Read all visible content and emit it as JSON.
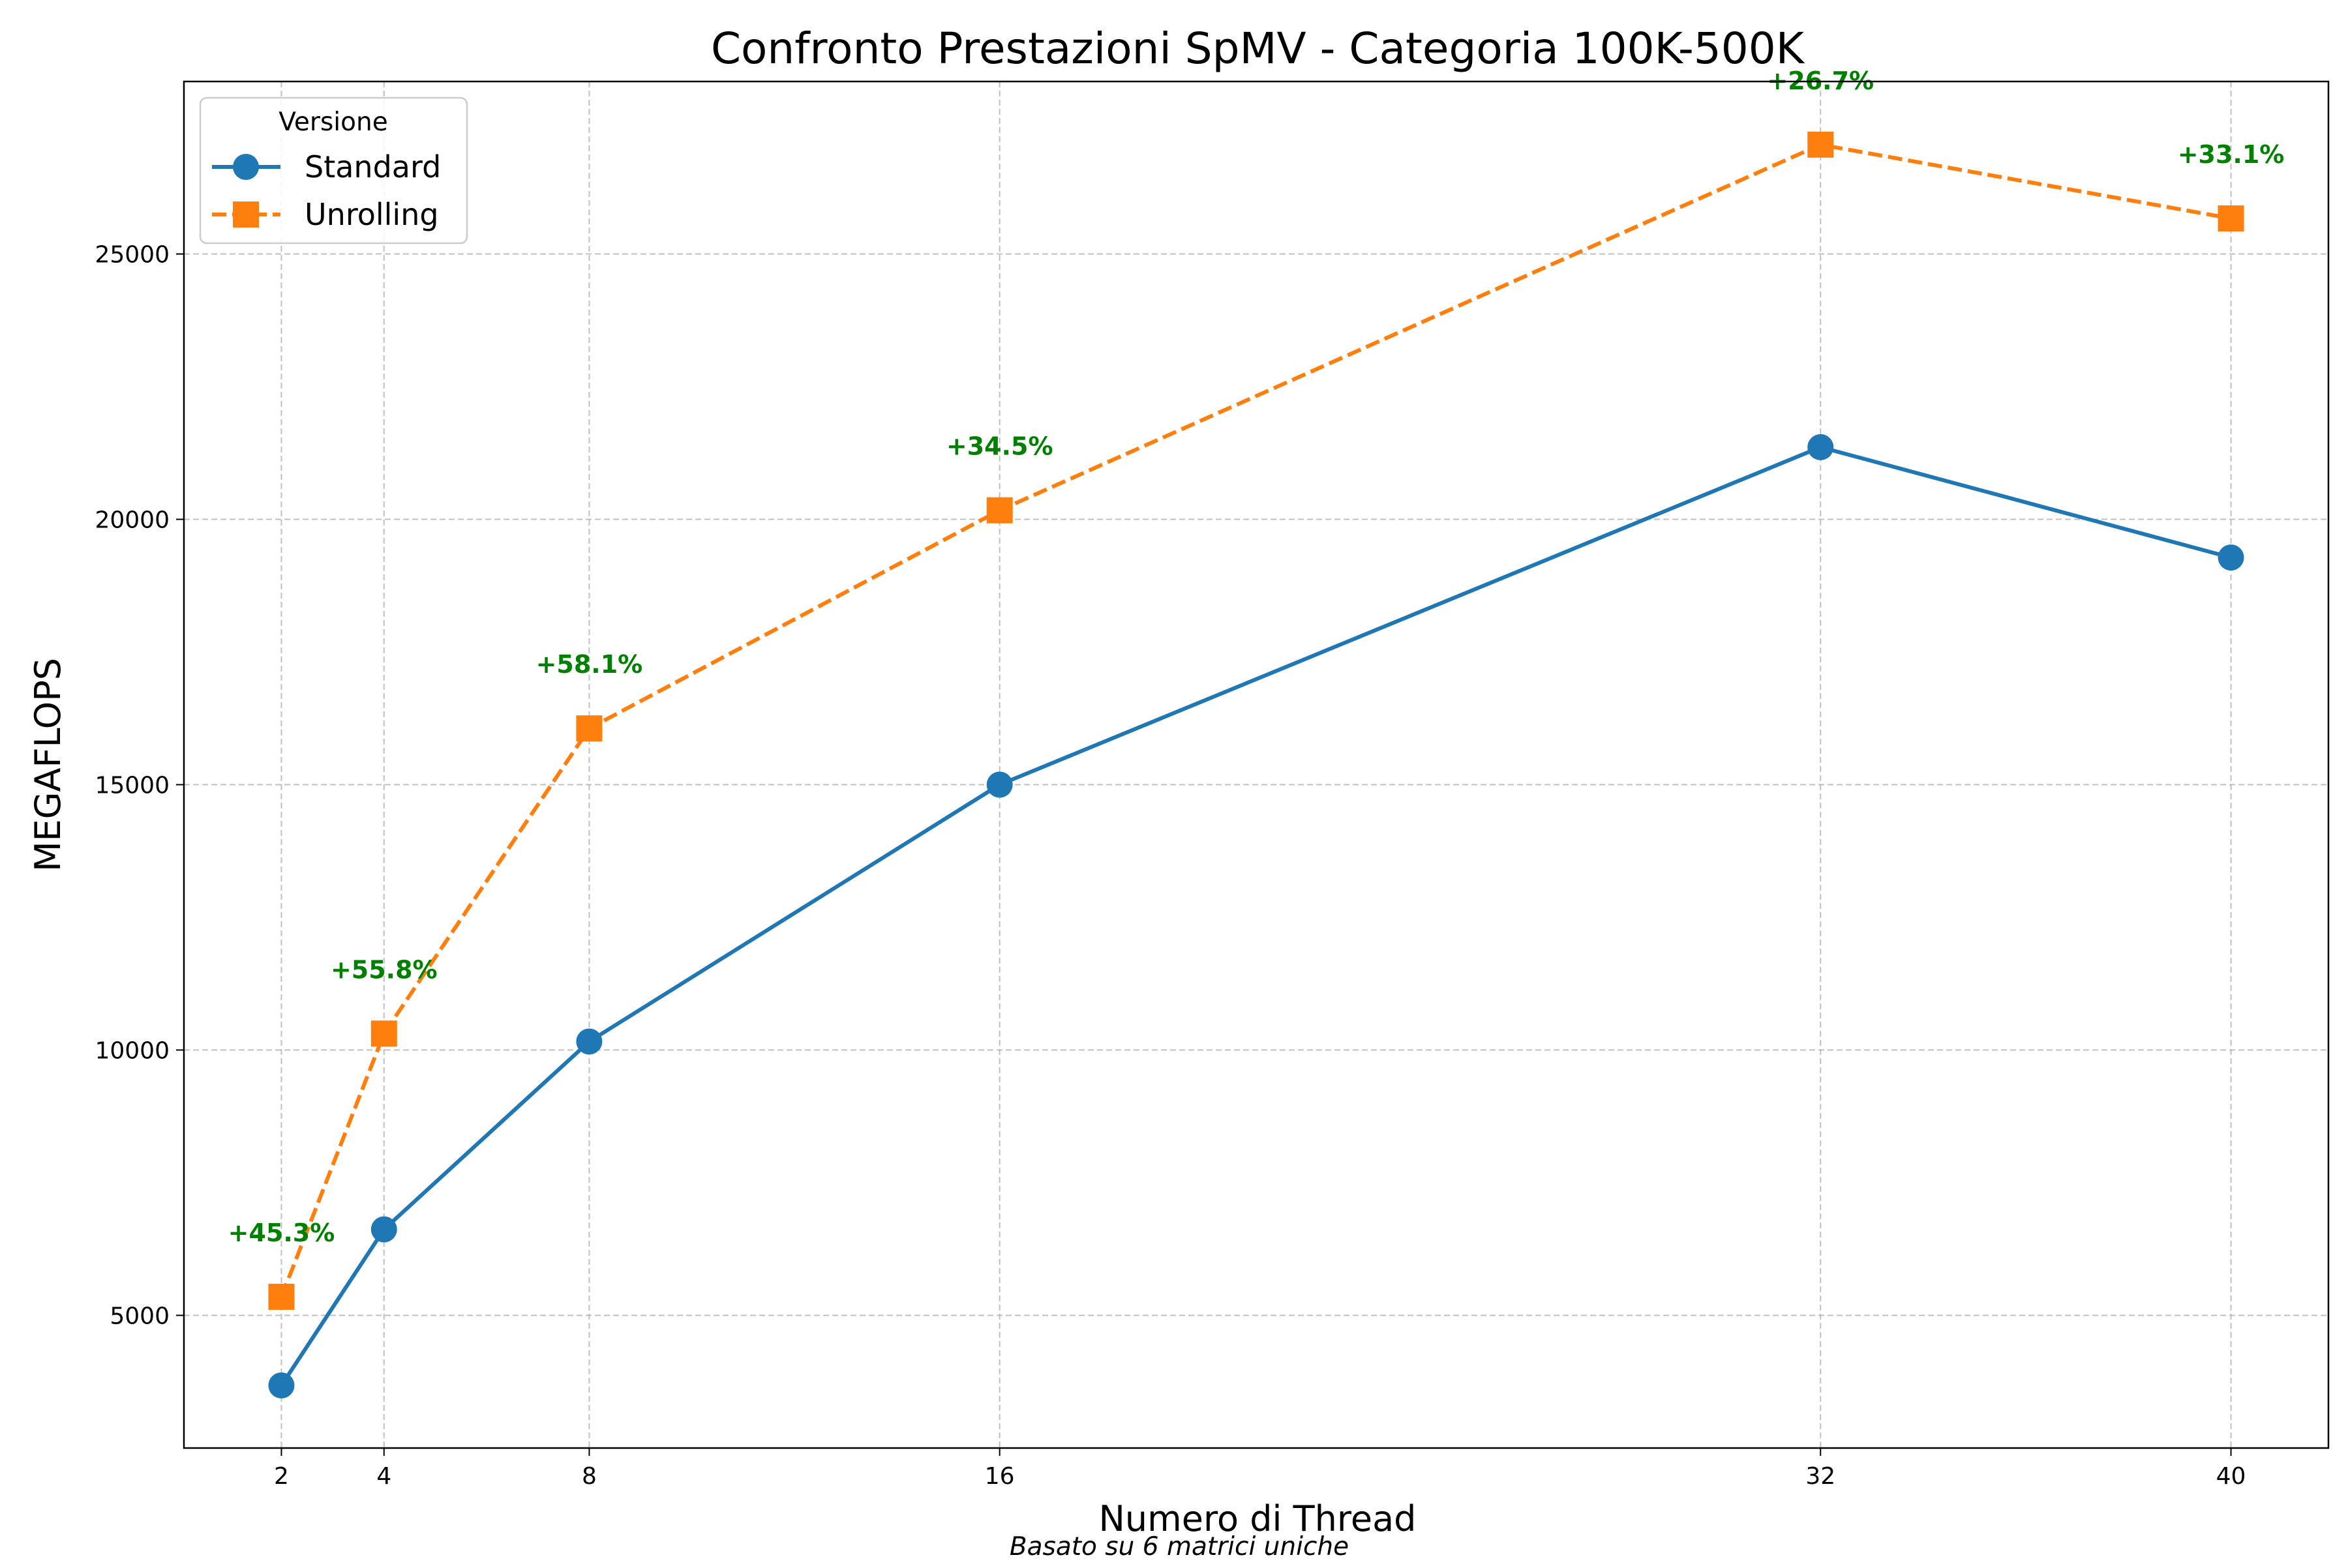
{
  "chart_data": {
    "type": "line",
    "title": "Confronto Prestazioni SpMV - Categoria 100K-500K",
    "xlabel": "Numero di Thread",
    "ylabel": "MEGAFLOPS",
    "footnote": "Basato su 6 matrici uniche",
    "x": [
      2,
      4,
      8,
      16,
      32,
      40
    ],
    "x_tick_labels": [
      "2",
      "4",
      "8",
      "16",
      "32",
      "40"
    ],
    "xlim": [
      0.1,
      41.9
    ],
    "ylim": [
      2500,
      28250
    ],
    "y_ticks": [
      5000,
      10000,
      15000,
      20000,
      25000
    ],
    "y_tick_labels": [
      "5000",
      "10000",
      "15000",
      "20000",
      "25000"
    ],
    "grid": true,
    "legend": {
      "title": "Versione",
      "placement": "top-left"
    },
    "series": [
      {
        "name": "Standard",
        "color": "#1f77b4",
        "marker": "circle",
        "line_style": "solid",
        "values": [
          3680,
          6620,
          10160,
          15000,
          21360,
          19280
        ]
      },
      {
        "name": "Unrolling",
        "color": "#ff7f0e",
        "marker": "square",
        "line_style": "dashed",
        "values": [
          5350,
          10310,
          16060,
          20170,
          27060,
          25670
        ]
      }
    ],
    "annotations": {
      "color": "#008000",
      "labels": [
        "+45.3%",
        "+55.8%",
        "+58.1%",
        "+34.5%",
        "+26.7%",
        "+33.1%"
      ]
    }
  }
}
